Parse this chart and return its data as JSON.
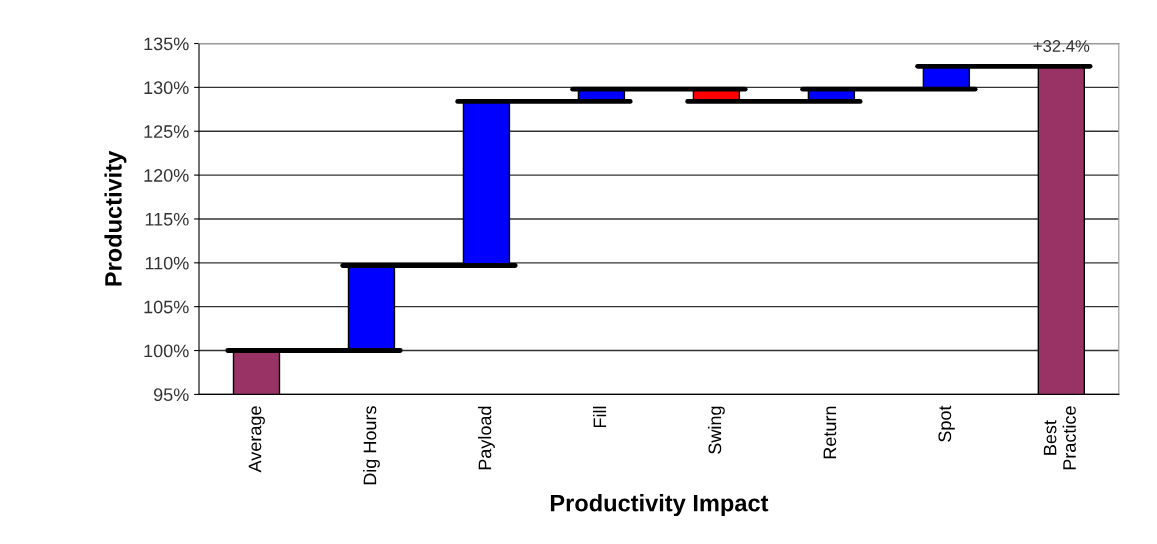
{
  "chart_data": {
    "type": "bar",
    "xlabel": "Productivity Impact",
    "ylabel": "Productivity",
    "categories": [
      "Average",
      "Dig Hours",
      "Payload",
      "Fill",
      "Swing",
      "Return",
      "Spot",
      "Best\nPractice"
    ],
    "values": [
      100,
      9.7,
      18.7,
      1.4,
      -1.4,
      1.4,
      2.6,
      132.4
    ],
    "base": [
      0,
      100,
      109.7,
      128.4,
      129.8,
      128.4,
      129.8,
      0
    ],
    "colors": [
      "#993366",
      "#0000ff",
      "#0000ff",
      "#0000ff",
      "#ff0000",
      "#0000ff",
      "#0000ff",
      "#993366"
    ],
    "ylim": [
      95,
      135
    ],
    "yticks": [
      {
        "value": 95,
        "label": "95%"
      },
      {
        "value": 100,
        "label": "100%"
      },
      {
        "value": 105,
        "label": "105%"
      },
      {
        "value": 110,
        "label": "110%"
      },
      {
        "value": 115,
        "label": "115%"
      },
      {
        "value": 120,
        "label": "120%"
      },
      {
        "value": 125,
        "label": "125%"
      },
      {
        "value": 130,
        "label": "130%"
      },
      {
        "value": 135,
        "label": "135%"
      }
    ],
    "annotations": [
      {
        "text": "+32.4%",
        "x": "Best\nPractice",
        "y": 132.4
      }
    ],
    "grid": "y"
  }
}
